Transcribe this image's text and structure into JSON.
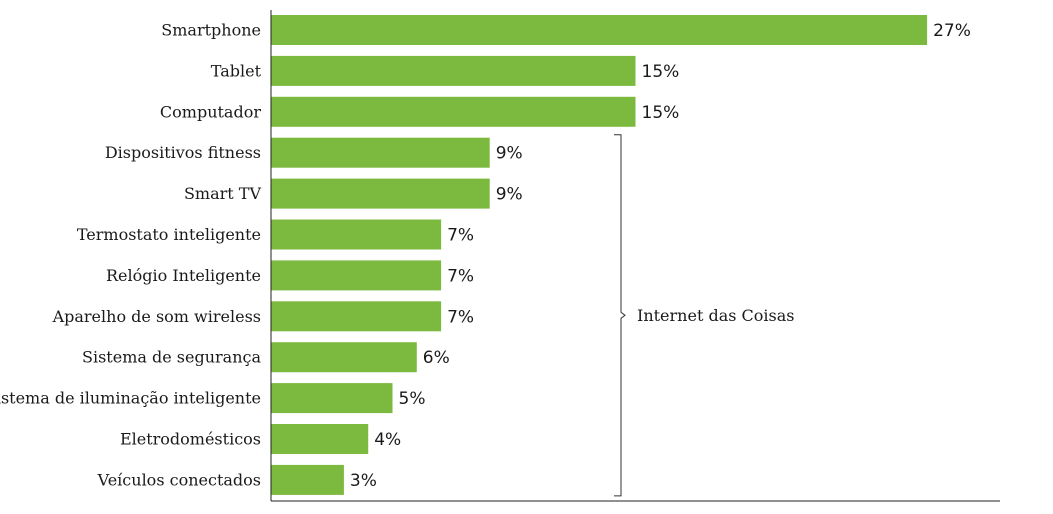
{
  "chart_data": {
    "type": "bar",
    "orientation": "horizontal",
    "categories": [
      "Smartphone",
      "Tablet",
      "Computador",
      "Dispositivos fitness",
      "Smart TV",
      "Termostato inteligente",
      "Relógio Inteligente",
      "Aparelho de som wireless",
      "Sistema de segurança",
      "Sistema de iluminação inteligente",
      "Eletrodomésticos",
      "Veículos conectados"
    ],
    "values": [
      27,
      15,
      15,
      9,
      9,
      7,
      7,
      7,
      6,
      5,
      4,
      3
    ],
    "value_labels": [
      "27%",
      "15%",
      "15%",
      "9%",
      "9%",
      "7%",
      "7%",
      "7%",
      "6%",
      "5%",
      "4%",
      "3%"
    ],
    "unit": "%",
    "xlim": [
      0,
      30
    ],
    "bar_color": "#7cba3f",
    "grid": false,
    "title": "",
    "xlabel": "",
    "ylabel": "",
    "bracket": {
      "label": "Internet das Coisas",
      "from_category": "Dispositivos fitness",
      "to_category": "Veículos conectados"
    }
  }
}
